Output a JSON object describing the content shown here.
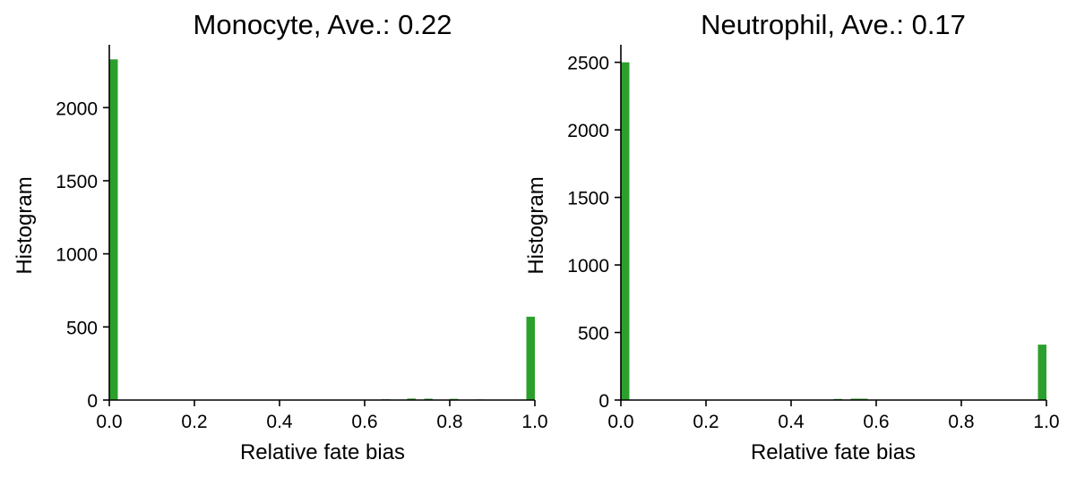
{
  "chart_data": [
    {
      "type": "bar",
      "title": "Monocyte, Ave.: 0.22",
      "xlabel": "Relative fate bias",
      "ylabel": "Histogram",
      "xlim": [
        0,
        1
      ],
      "ylim": [
        0,
        2430
      ],
      "xticks": [
        "0.0",
        "0.2",
        "0.4",
        "0.6",
        "0.8",
        "1.0"
      ],
      "yticks": [
        "0",
        "500",
        "1000",
        "1500",
        "2000"
      ],
      "bin_width": 0.02,
      "x": [
        0.0,
        0.08,
        0.16,
        0.26,
        0.34,
        0.42,
        0.5,
        0.58,
        0.64,
        0.7,
        0.74,
        0.8,
        0.86,
        0.98
      ],
      "values": [
        2330,
        2,
        2,
        2,
        3,
        3,
        3,
        3,
        5,
        10,
        9,
        8,
        4,
        570
      ],
      "color": "#2ca02c",
      "grid": false,
      "legend": "none"
    },
    {
      "type": "bar",
      "title": "Neutrophil, Ave.: 0.17",
      "xlabel": "Relative fate bias",
      "ylabel": "Histogram",
      "xlim": [
        0,
        1
      ],
      "ylim": [
        0,
        2630
      ],
      "xticks": [
        "0.0",
        "0.2",
        "0.4",
        "0.6",
        "0.8",
        "1.0"
      ],
      "yticks": [
        "0",
        "500",
        "1000",
        "1500",
        "2000",
        "2500"
      ],
      "bin_width": 0.02,
      "x": [
        0.0,
        0.2,
        0.4,
        0.5,
        0.54,
        0.56,
        0.62,
        0.78,
        0.88,
        0.98
      ],
      "values": [
        2500,
        2,
        2,
        8,
        10,
        10,
        3,
        3,
        3,
        410
      ],
      "color": "#2ca02c",
      "grid": false,
      "legend": "none"
    }
  ]
}
